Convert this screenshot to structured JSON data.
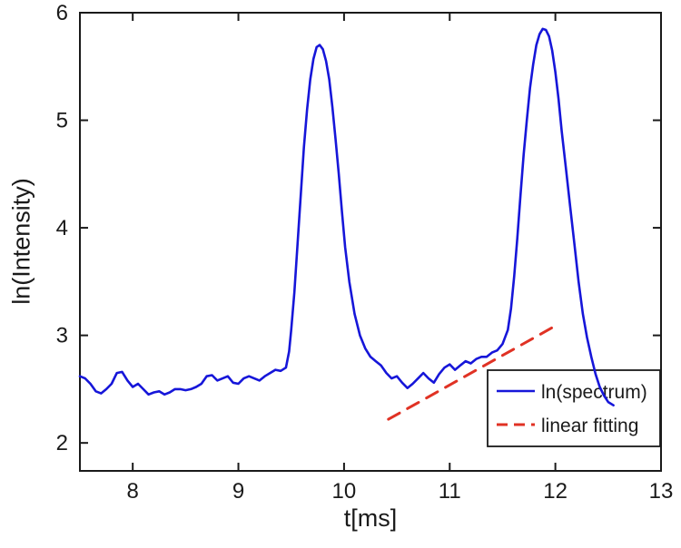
{
  "figure": {
    "background": "#ffffff",
    "axis_color": "#1a1a1a"
  },
  "chart_data": {
    "type": "line",
    "title": "",
    "xlabel": "t[ms]",
    "ylabel": "ln(Intensity)",
    "xlim": [
      7.5,
      13
    ],
    "ylim": [
      1.74,
      6
    ],
    "xticks": [
      8,
      9,
      10,
      11,
      12,
      13
    ],
    "yticks": [
      2,
      3,
      4,
      5,
      6
    ],
    "grid": false,
    "legend": {
      "position": "lower-right",
      "entries": [
        "ln(spectrum)",
        "linear fitting"
      ]
    },
    "series": [
      {
        "name": "ln(spectrum)",
        "color": "#1616d9",
        "style": "solid",
        "width": 2.6,
        "points": [
          [
            7.5,
            2.62
          ],
          [
            7.55,
            2.6
          ],
          [
            7.6,
            2.55
          ],
          [
            7.65,
            2.48
          ],
          [
            7.7,
            2.46
          ],
          [
            7.75,
            2.5
          ],
          [
            7.8,
            2.55
          ],
          [
            7.85,
            2.65
          ],
          [
            7.9,
            2.66
          ],
          [
            7.95,
            2.58
          ],
          [
            8.0,
            2.52
          ],
          [
            8.05,
            2.55
          ],
          [
            8.1,
            2.5
          ],
          [
            8.15,
            2.45
          ],
          [
            8.2,
            2.47
          ],
          [
            8.25,
            2.48
          ],
          [
            8.3,
            2.45
          ],
          [
            8.35,
            2.47
          ],
          [
            8.4,
            2.5
          ],
          [
            8.45,
            2.5
          ],
          [
            8.5,
            2.49
          ],
          [
            8.55,
            2.5
          ],
          [
            8.6,
            2.52
          ],
          [
            8.65,
            2.55
          ],
          [
            8.7,
            2.62
          ],
          [
            8.75,
            2.63
          ],
          [
            8.8,
            2.58
          ],
          [
            8.85,
            2.6
          ],
          [
            8.9,
            2.62
          ],
          [
            8.95,
            2.56
          ],
          [
            9.0,
            2.55
          ],
          [
            9.05,
            2.6
          ],
          [
            9.1,
            2.62
          ],
          [
            9.15,
            2.6
          ],
          [
            9.2,
            2.58
          ],
          [
            9.25,
            2.62
          ],
          [
            9.3,
            2.65
          ],
          [
            9.35,
            2.68
          ],
          [
            9.4,
            2.67
          ],
          [
            9.45,
            2.7
          ],
          [
            9.48,
            2.85
          ],
          [
            9.5,
            3.05
          ],
          [
            9.53,
            3.4
          ],
          [
            9.56,
            3.85
          ],
          [
            9.59,
            4.3
          ],
          [
            9.62,
            4.75
          ],
          [
            9.65,
            5.1
          ],
          [
            9.68,
            5.38
          ],
          [
            9.71,
            5.57
          ],
          [
            9.74,
            5.68
          ],
          [
            9.77,
            5.7
          ],
          [
            9.8,
            5.66
          ],
          [
            9.83,
            5.55
          ],
          [
            9.86,
            5.38
          ],
          [
            9.89,
            5.12
          ],
          [
            9.92,
            4.82
          ],
          [
            9.95,
            4.5
          ],
          [
            9.98,
            4.15
          ],
          [
            10.01,
            3.82
          ],
          [
            10.05,
            3.5
          ],
          [
            10.1,
            3.2
          ],
          [
            10.15,
            3.0
          ],
          [
            10.2,
            2.88
          ],
          [
            10.25,
            2.8
          ],
          [
            10.3,
            2.76
          ],
          [
            10.35,
            2.72
          ],
          [
            10.4,
            2.65
          ],
          [
            10.45,
            2.6
          ],
          [
            10.5,
            2.62
          ],
          [
            10.55,
            2.56
          ],
          [
            10.6,
            2.51
          ],
          [
            10.65,
            2.55
          ],
          [
            10.7,
            2.6
          ],
          [
            10.75,
            2.65
          ],
          [
            10.8,
            2.6
          ],
          [
            10.85,
            2.56
          ],
          [
            10.9,
            2.64
          ],
          [
            10.95,
            2.7
          ],
          [
            11.0,
            2.73
          ],
          [
            11.05,
            2.68
          ],
          [
            11.1,
            2.72
          ],
          [
            11.15,
            2.76
          ],
          [
            11.2,
            2.74
          ],
          [
            11.25,
            2.78
          ],
          [
            11.3,
            2.8
          ],
          [
            11.35,
            2.8
          ],
          [
            11.4,
            2.84
          ],
          [
            11.45,
            2.86
          ],
          [
            11.5,
            2.92
          ],
          [
            11.55,
            3.05
          ],
          [
            11.58,
            3.25
          ],
          [
            11.61,
            3.55
          ],
          [
            11.64,
            3.9
          ],
          [
            11.67,
            4.3
          ],
          [
            11.7,
            4.68
          ],
          [
            11.73,
            5.0
          ],
          [
            11.76,
            5.3
          ],
          [
            11.79,
            5.52
          ],
          [
            11.82,
            5.7
          ],
          [
            11.85,
            5.8
          ],
          [
            11.88,
            5.85
          ],
          [
            11.91,
            5.84
          ],
          [
            11.94,
            5.78
          ],
          [
            11.97,
            5.65
          ],
          [
            12.0,
            5.45
          ],
          [
            12.03,
            5.2
          ],
          [
            12.06,
            4.9
          ],
          [
            12.1,
            4.55
          ],
          [
            12.14,
            4.2
          ],
          [
            12.18,
            3.85
          ],
          [
            12.22,
            3.5
          ],
          [
            12.26,
            3.2
          ],
          [
            12.3,
            2.98
          ],
          [
            12.34,
            2.8
          ],
          [
            12.38,
            2.64
          ],
          [
            12.42,
            2.52
          ],
          [
            12.46,
            2.44
          ],
          [
            12.5,
            2.38
          ],
          [
            12.55,
            2.35
          ]
        ]
      },
      {
        "name": "linear fitting",
        "color": "#e03224",
        "style": "dashed",
        "width": 3,
        "points": [
          [
            10.42,
            2.22
          ],
          [
            12.02,
            3.1
          ]
        ]
      }
    ]
  }
}
